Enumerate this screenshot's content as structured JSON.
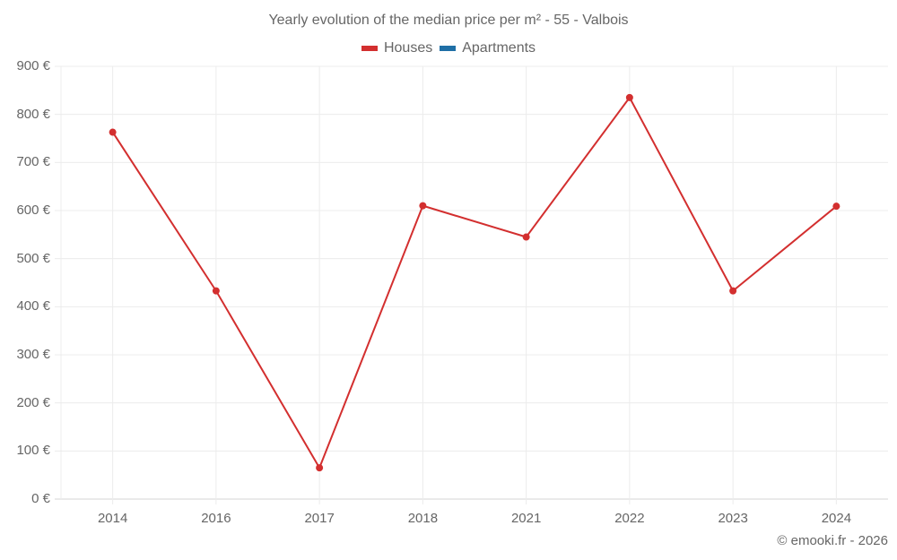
{
  "title": "Yearly evolution of the median price per m² - 55 - Valbois",
  "legend": [
    {
      "label": "Houses",
      "color": "#d32f2f"
    },
    {
      "label": "Apartments",
      "color": "#1f6fa6"
    }
  ],
  "credit": "© emooki.fr - 2026",
  "y_ticks": [
    "900 €",
    "800 €",
    "700 €",
    "600 €",
    "500 €",
    "400 €",
    "300 €",
    "200 €",
    "100 €",
    "0 €"
  ],
  "x_ticks": [
    "2014",
    "2016",
    "2017",
    "2018",
    "2021",
    "2022",
    "2023",
    "2024"
  ],
  "chart_data": {
    "type": "line",
    "title": "Yearly evolution of the median price per m² - 55 - Valbois",
    "xlabel": "",
    "ylabel": "",
    "categories": [
      "2014",
      "2016",
      "2017",
      "2018",
      "2021",
      "2022",
      "2023",
      "2024"
    ],
    "series": [
      {
        "name": "Houses",
        "color": "#d32f2f",
        "values": [
          763,
          433,
          65,
          610,
          545,
          835,
          433,
          609
        ]
      },
      {
        "name": "Apartments",
        "color": "#1f6fa6",
        "values": []
      }
    ],
    "ylim": [
      0,
      900
    ],
    "y_tick_step": 100,
    "y_unit": "€",
    "grid": true,
    "legend_position": "top"
  }
}
